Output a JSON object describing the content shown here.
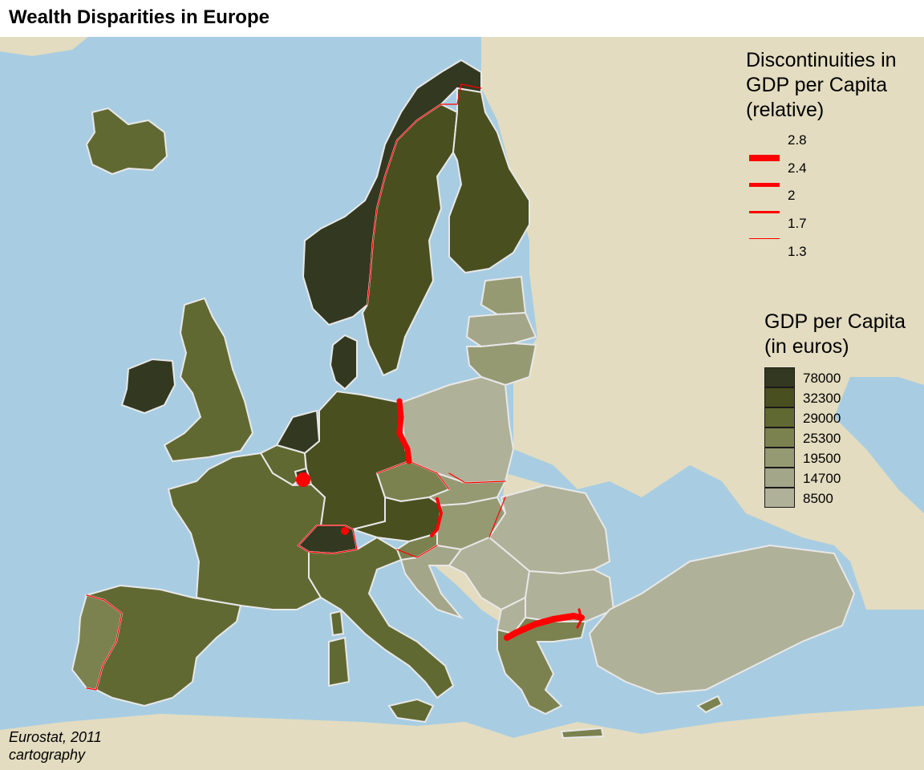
{
  "title": "Wealth Disparities in Europe",
  "discontinuity_legend": {
    "title_lines": [
      "Discontinuities in",
      "GDP per Capita",
      "(relative)"
    ],
    "labels": [
      "2.8",
      "2.4",
      "2",
      "1.7",
      "1.3"
    ],
    "color": "#ff0000"
  },
  "gdp_legend": {
    "title_lines": [
      "GDP per Capita",
      "(in euros)"
    ],
    "classes": [
      {
        "label": "78000",
        "color": "#333820"
      },
      {
        "label": "32300",
        "color": "#494f1f"
      },
      {
        "label": "29000",
        "color": "#616932"
      },
      {
        "label": "25300",
        "color": "#7b8250"
      },
      {
        "label": "19500",
        "color": "#959a73"
      },
      {
        "label": "14700",
        "color": "#a3a688"
      },
      {
        "label": "8500",
        "color": "#b0b199"
      }
    ]
  },
  "colors": {
    "sea": "#a8cde2",
    "land_outside": "#e3dcc0",
    "border": "#e8e8e8",
    "discontinuity": "#ff0000"
  },
  "map": {
    "countries": [
      {
        "name": "Iceland",
        "gdp_class": 2
      },
      {
        "name": "Norway",
        "gdp_class": 0
      },
      {
        "name": "Sweden",
        "gdp_class": 1
      },
      {
        "name": "Finland",
        "gdp_class": 1
      },
      {
        "name": "Estonia",
        "gdp_class": 4
      },
      {
        "name": "Latvia",
        "gdp_class": 5
      },
      {
        "name": "Lithuania",
        "gdp_class": 4
      },
      {
        "name": "Denmark",
        "gdp_class": 0
      },
      {
        "name": "Ireland",
        "gdp_class": 0
      },
      {
        "name": "United Kingdom",
        "gdp_class": 2
      },
      {
        "name": "Netherlands",
        "gdp_class": 0
      },
      {
        "name": "Belgium",
        "gdp_class": 2
      },
      {
        "name": "Luxembourg",
        "gdp_class": 0
      },
      {
        "name": "Germany",
        "gdp_class": 1
      },
      {
        "name": "Poland",
        "gdp_class": 6
      },
      {
        "name": "Czech Republic",
        "gdp_class": 3
      },
      {
        "name": "Slovakia",
        "gdp_class": 4
      },
      {
        "name": "Austria",
        "gdp_class": 1
      },
      {
        "name": "Switzerland",
        "gdp_class": 0
      },
      {
        "name": "Hungary",
        "gdp_class": 4
      },
      {
        "name": "Slovenia",
        "gdp_class": 3
      },
      {
        "name": "Croatia",
        "gdp_class": 5
      },
      {
        "name": "Romania",
        "gdp_class": 6
      },
      {
        "name": "Serbia",
        "gdp_class": 6
      },
      {
        "name": "Bulgaria",
        "gdp_class": 6
      },
      {
        "name": "Macedonia",
        "gdp_class": 6
      },
      {
        "name": "Greece",
        "gdp_class": 3
      },
      {
        "name": "Turkey",
        "gdp_class": 6
      },
      {
        "name": "Cyprus",
        "gdp_class": 3
      },
      {
        "name": "France",
        "gdp_class": 2
      },
      {
        "name": "Spain",
        "gdp_class": 2
      },
      {
        "name": "Portugal",
        "gdp_class": 3
      },
      {
        "name": "Italy",
        "gdp_class": 2
      },
      {
        "name": "Malta",
        "gdp_class": 3
      }
    ],
    "discontinuities": [
      {
        "between": "Norway / Sweden",
        "value": 1.3
      },
      {
        "between": "Germany / Poland",
        "value": 2.8
      },
      {
        "between": "Luxembourg / Belgium",
        "value": 2.8
      },
      {
        "between": "Austria / Hungary",
        "value": 2.4
      },
      {
        "between": "Switzerland",
        "value": 1.3
      },
      {
        "between": "Greece / Bulgaria",
        "value": 2.8
      },
      {
        "between": "Portugal / Spain",
        "value": 1.3
      }
    ]
  },
  "source": [
    "Eurostat, 2011",
    "cartography"
  ]
}
